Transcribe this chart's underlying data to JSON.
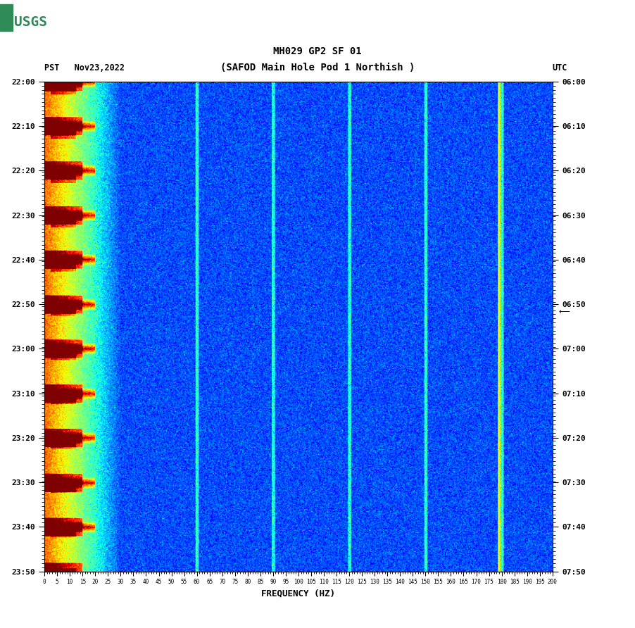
{
  "title_line1": "MH029 GP2 SF 01",
  "title_line2": "(SAFOD Main Hole Pod 1 Northish )",
  "left_label": "PST   Nov23,2022",
  "right_label": "UTC",
  "xlabel": "FREQUENCY (HZ)",
  "freq_min": 0,
  "freq_max": 200,
  "time_start_left": "22:00",
  "time_end_left": "23:50",
  "time_start_right": "06:00",
  "time_end_right": "07:50",
  "left_ticks": [
    "22:00",
    "22:10",
    "22:20",
    "22:30",
    "22:40",
    "22:50",
    "23:00",
    "23:10",
    "23:20",
    "23:30",
    "23:40",
    "23:50"
  ],
  "right_ticks": [
    "06:00",
    "06:10",
    "06:20",
    "06:30",
    "06:40",
    "06:50",
    "07:00",
    "07:10",
    "07:20",
    "07:30",
    "07:40",
    "07:50"
  ],
  "freq_ticks": [
    0,
    5,
    10,
    15,
    20,
    25,
    30,
    35,
    40,
    45,
    50,
    55,
    60,
    65,
    70,
    75,
    80,
    85,
    90,
    95,
    100,
    105,
    110,
    115,
    120,
    125,
    130,
    135,
    140,
    145,
    150,
    155,
    160,
    165,
    170,
    175,
    180,
    185,
    190,
    195,
    200
  ],
  "bg_color": "#ffffff",
  "plot_bg": "#0000aa",
  "n_time": 720,
  "n_freq": 800,
  "seed": 42
}
